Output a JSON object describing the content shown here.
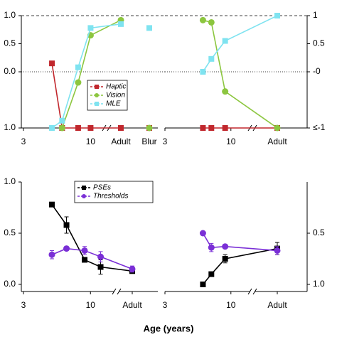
{
  "xlabel": "Age (years)",
  "chart_data": [
    {
      "type": "line",
      "xscale": "log",
      "xlim": [
        3,
        13
      ],
      "xticks": [
        3,
        10
      ],
      "x": [
        5,
        6,
        8,
        10,
        "Adult",
        "Blur"
      ],
      "ylim": [
        -1,
        1
      ],
      "yticks": [
        {
          "value": 1,
          "label": "1.0"
        },
        {
          "value": 0.5,
          "label": "0.5"
        },
        {
          "value": 0,
          "label": "0.0"
        },
        {
          "value": -1,
          "label": "1.0"
        }
      ],
      "reference_lines": [
        {
          "value": 1,
          "style": "dashed"
        },
        {
          "value": 0,
          "style": "dotted"
        }
      ],
      "legend": "center right",
      "series": [
        {
          "name": "Haptic",
          "color": "#c1272d",
          "marker": "square",
          "values": [
            0.15,
            -1,
            -1,
            -1,
            -1,
            -1
          ]
        },
        {
          "name": "Vision",
          "color": "#8cc63f",
          "marker": "circle",
          "values": [
            null,
            -1,
            -0.19,
            0.65,
            0.92,
            -1
          ]
        },
        {
          "name": "MLE",
          "color": "#7fe3f0",
          "marker": "square",
          "values": [
            -1,
            -0.87,
            0.08,
            0.78,
            0.85,
            0.78
          ]
        }
      ]
    },
    {
      "type": "line",
      "xscale": "log",
      "xlim": [
        3,
        13
      ],
      "xticks": [
        3,
        10
      ],
      "x": [
        6,
        7,
        9,
        "Adult"
      ],
      "ylim": [
        -1,
        1
      ],
      "y2lim": [
        -1,
        1
      ],
      "y2ticks": [
        {
          "value": 1,
          "label": "1"
        },
        {
          "value": 0.5,
          "label": "0.5"
        },
        {
          "value": 0,
          "label": "-0"
        },
        {
          "value": -1,
          "label": "≤-1"
        }
      ],
      "reference_lines": [
        {
          "value": 1,
          "style": "dashed"
        },
        {
          "value": 0,
          "style": "dotted"
        }
      ],
      "series": [
        {
          "color": "#c1272d",
          "marker": "square",
          "values": [
            -1,
            -1,
            -1,
            -1
          ]
        },
        {
          "color": "#8cc63f",
          "marker": "circle",
          "values": [
            0.92,
            0.88,
            -0.35,
            -1
          ]
        },
        {
          "color": "#7fe3f0",
          "marker": "square",
          "values": [
            0,
            0.23,
            0.55,
            1
          ]
        }
      ]
    },
    {
      "type": "line",
      "xscale": "log",
      "xlim": [
        3,
        15
      ],
      "xticks": [
        3,
        10
      ],
      "x": [
        5,
        6.5,
        9,
        12,
        "Adult"
      ],
      "ylim": [
        0,
        1
      ],
      "yticks": [
        {
          "value": 1,
          "label": "1.0"
        },
        {
          "value": 0.5,
          "label": "0.5"
        },
        {
          "value": 0,
          "label": "0.0"
        }
      ],
      "legend": "upper center",
      "series": [
        {
          "name": "PSEs",
          "color": "#000000",
          "marker": "square",
          "values": [
            0.78,
            0.58,
            0.24,
            0.17,
            0.13
          ],
          "errors": [
            null,
            0.08,
            null,
            0.07,
            null
          ]
        },
        {
          "name": "Thresholds",
          "color": "#7a2fd6",
          "marker": "circle",
          "values": [
            0.29,
            0.35,
            0.33,
            0.27,
            0.15
          ],
          "errors": [
            0.04,
            null,
            0.04,
            0.05,
            0.03
          ]
        }
      ]
    },
    {
      "type": "line",
      "xscale": "log",
      "xlim": [
        3,
        13
      ],
      "xticks": [
        3,
        10
      ],
      "x": [
        6,
        7,
        9,
        "Adult"
      ],
      "ylim": [
        0,
        1
      ],
      "y2lim": [
        1,
        0
      ],
      "y2ticks": [
        {
          "value": 0.5,
          "label": "0.5"
        },
        {
          "value": 1,
          "label": "1.0"
        }
      ],
      "series": [
        {
          "color": "#000000",
          "marker": "square",
          "values": [
            0,
            0.1,
            0.25,
            0.35
          ],
          "errors": [
            null,
            null,
            0.04,
            0.06
          ]
        },
        {
          "color": "#7a2fd6",
          "marker": "circle",
          "values": [
            0.5,
            0.36,
            0.37,
            0.33
          ],
          "errors": [
            null,
            0.04,
            null,
            0.04
          ]
        }
      ]
    }
  ]
}
